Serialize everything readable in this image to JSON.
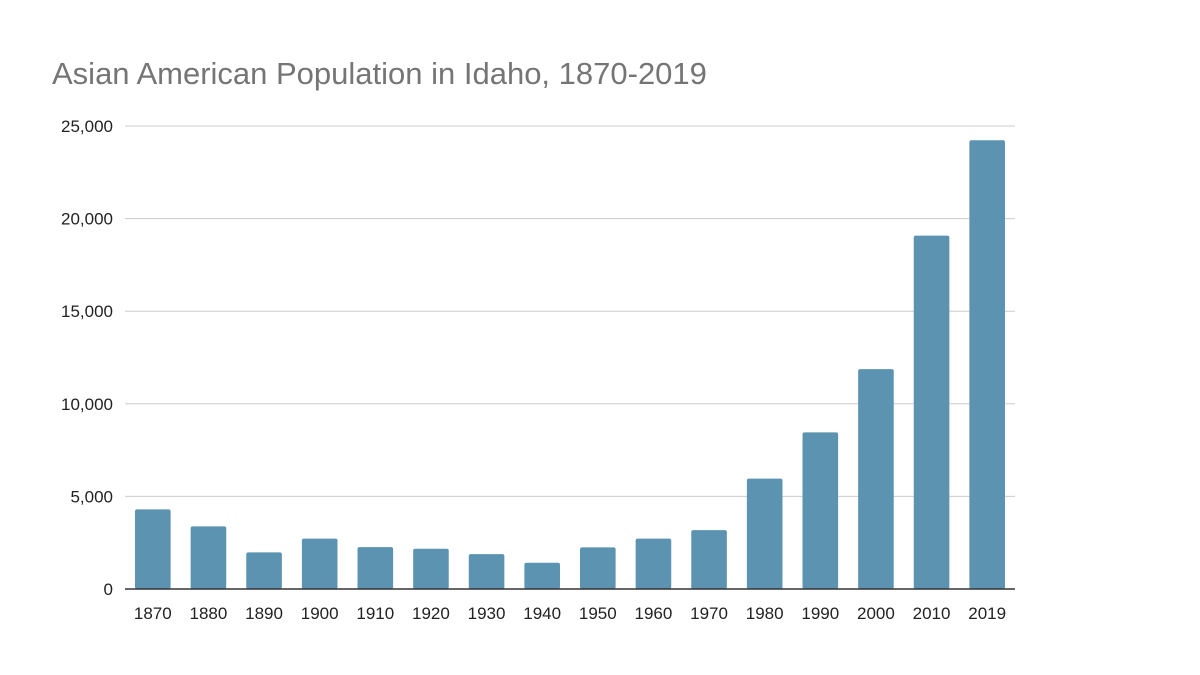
{
  "chart_data": {
    "type": "bar",
    "title": "Asian American Population in Idaho, 1870-2019",
    "xlabel": "",
    "ylabel": "",
    "categories": [
      "1870",
      "1880",
      "1890",
      "1900",
      "1910",
      "1920",
      "1930",
      "1940",
      "1950",
      "1960",
      "1970",
      "1980",
      "1990",
      "2000",
      "2010",
      "2019"
    ],
    "values": [
      4300,
      3380,
      1980,
      2720,
      2260,
      2170,
      1880,
      1420,
      2250,
      2720,
      3180,
      5960,
      8460,
      11870,
      19080,
      24230
    ],
    "ylim": [
      0,
      25000
    ],
    "y_ticks": [
      0,
      5000,
      10000,
      15000,
      20000,
      25000
    ],
    "y_tick_labels": [
      "0",
      "5,000",
      "10,000",
      "15,000",
      "20,000",
      "25,000"
    ],
    "grid": true,
    "legend": "none",
    "bar_color": "#5b93b1"
  }
}
